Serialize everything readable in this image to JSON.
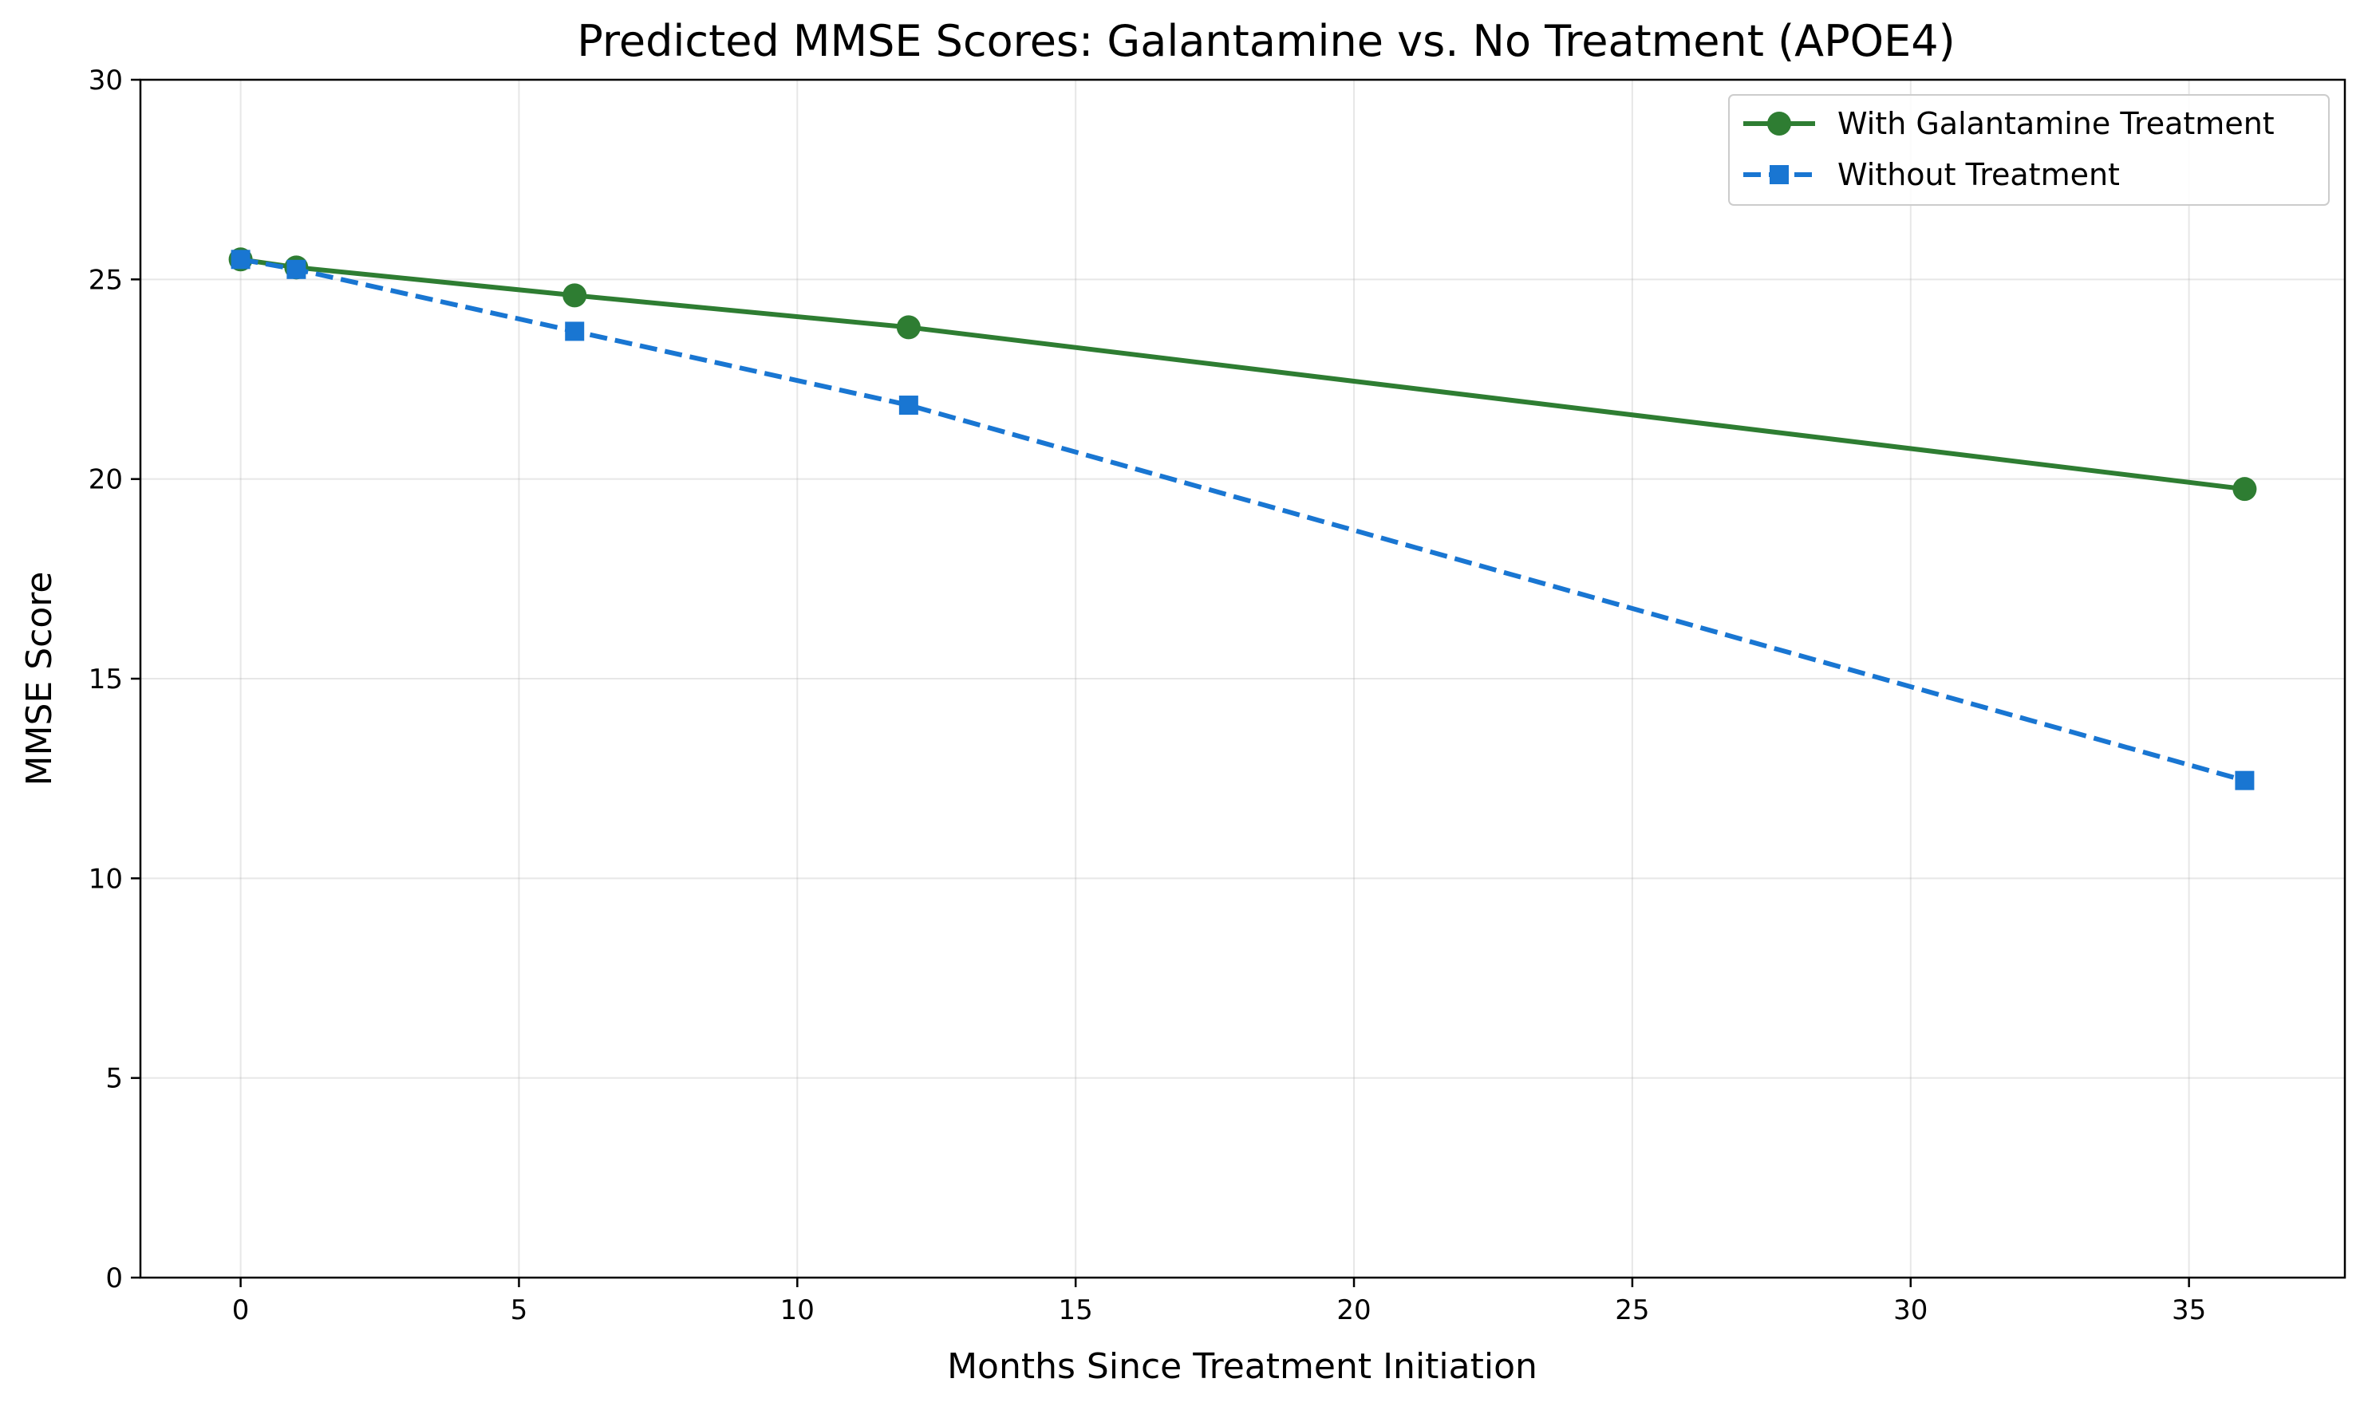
{
  "chart_data": {
    "type": "line",
    "title": "Predicted MMSE Scores: Galantamine vs. No Treatment (APOE4)",
    "xlabel": "Months Since Treatment Initiation",
    "ylabel": "MMSE Score",
    "xlim": [
      -1.8,
      37.8
    ],
    "ylim": [
      0,
      30
    ],
    "xticks": [
      0,
      5,
      10,
      15,
      20,
      25,
      30,
      35
    ],
    "yticks": [
      0,
      5,
      10,
      15,
      20,
      25,
      30
    ],
    "grid": true,
    "legend_position": "top-right",
    "series": [
      {
        "name": "With Galantamine Treatment",
        "color": "#2e7d32",
        "line_style": "solid",
        "marker": "circle",
        "x": [
          0,
          1,
          6,
          12,
          36
        ],
        "y": [
          25.5,
          25.3,
          24.6,
          23.8,
          19.75
        ]
      },
      {
        "name": "Without Treatment",
        "color": "#1976d2",
        "line_style": "dashed",
        "marker": "square",
        "x": [
          0,
          1,
          6,
          12,
          36
        ],
        "y": [
          25.5,
          25.25,
          23.7,
          21.85,
          12.45
        ]
      }
    ]
  }
}
